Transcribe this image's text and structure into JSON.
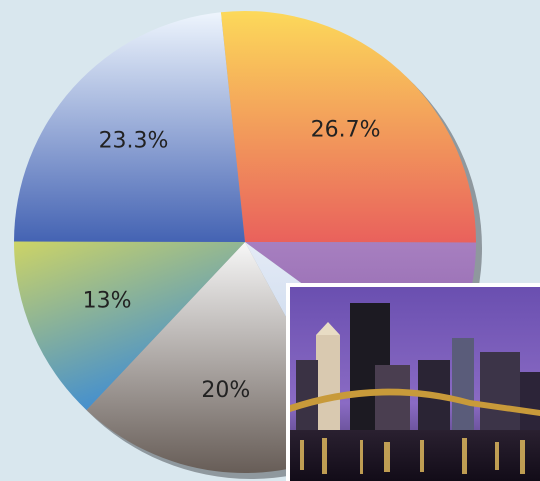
{
  "chart_data": {
    "type": "pie",
    "values": [
      26.7,
      10,
      7,
      20,
      13,
      23.3
    ],
    "value_labels": [
      "26.7%",
      null,
      null,
      "20%",
      "13%",
      "23.3%"
    ],
    "colors": [
      [
        "#fcd95a",
        "#e9615c"
      ],
      [
        "#a77fc0",
        "#8a5fa8"
      ],
      [
        "#e4ebf6",
        "#b9cbe6"
      ],
      [
        "#f7f7f7",
        "#675d57"
      ],
      [
        "#cdd466",
        "#3a8ad6"
      ],
      [
        "#eef5fd",
        "#4463b3"
      ]
    ]
  }
}
